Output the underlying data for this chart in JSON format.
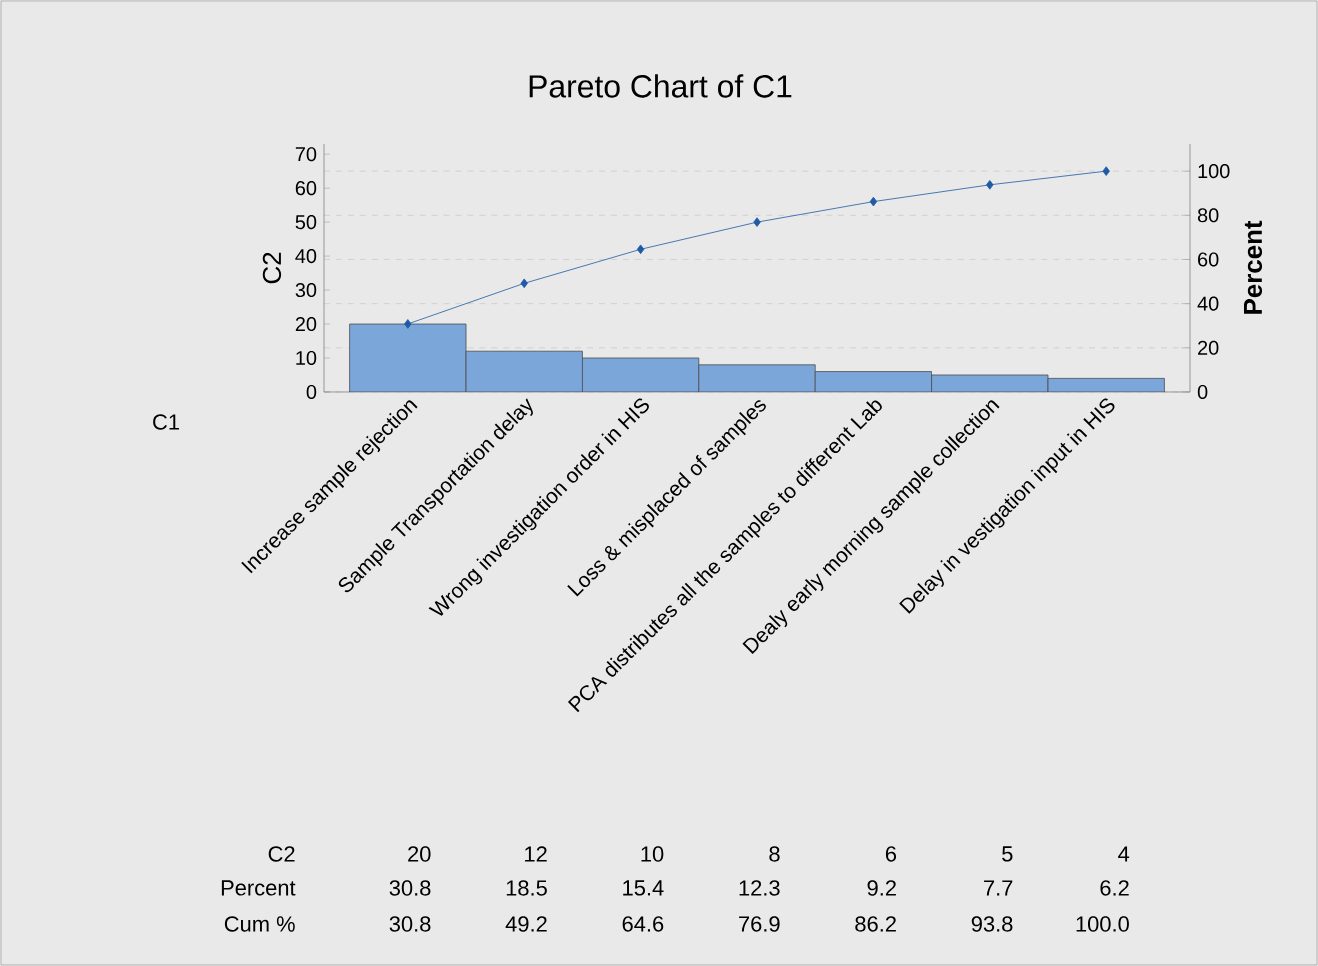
{
  "chart_data": {
    "type": "bar",
    "title": "Pareto Chart of C1",
    "xlabel": "C1",
    "ylabel": "C2",
    "y2label": "Percent",
    "categories": [
      "Increase sample rejection",
      "Sample Transportation delay",
      "Wrong investigation order in HIS",
      "Loss & misplaced of samples",
      "PCA distributes all the samples to different Lab",
      "Dealy early morning sample collection",
      "Delay in vestigation input in HIS"
    ],
    "series": [
      {
        "color": "#7ba6da",
        "values": [
          20,
          12,
          10,
          8,
          6,
          5,
          4
        ],
        "value_labels": [
          "20",
          "12",
          "10",
          "8",
          "6",
          "5",
          "4"
        ]
      },
      {
        "type": "line",
        "axis": "y2",
        "color": "#1f5aa6",
        "marker": "diamond",
        "values": [
          30.8,
          49.2,
          64.6,
          76.9,
          86.2,
          93.8,
          100.0
        ],
        "value_labels": [
          "30.8",
          "49.2",
          "64.6",
          "76.9",
          "86.2",
          "93.8",
          "100.0"
        ]
      }
    ],
    "ylim": [
      0,
      73
    ],
    "yticks": [
      0,
      10,
      20,
      30,
      40,
      50,
      60,
      70
    ],
    "y2lim": [
      0,
      112.3
    ],
    "y2ticks": [
      0,
      20,
      40,
      60,
      80,
      100
    ],
    "grid": "y",
    "annotations": [
      "C2",
      "Percent",
      "30.8",
      "18.5",
      "15.4",
      "12.3",
      "9.2",
      "7.7",
      "6.2",
      "Cum %"
    ]
  }
}
